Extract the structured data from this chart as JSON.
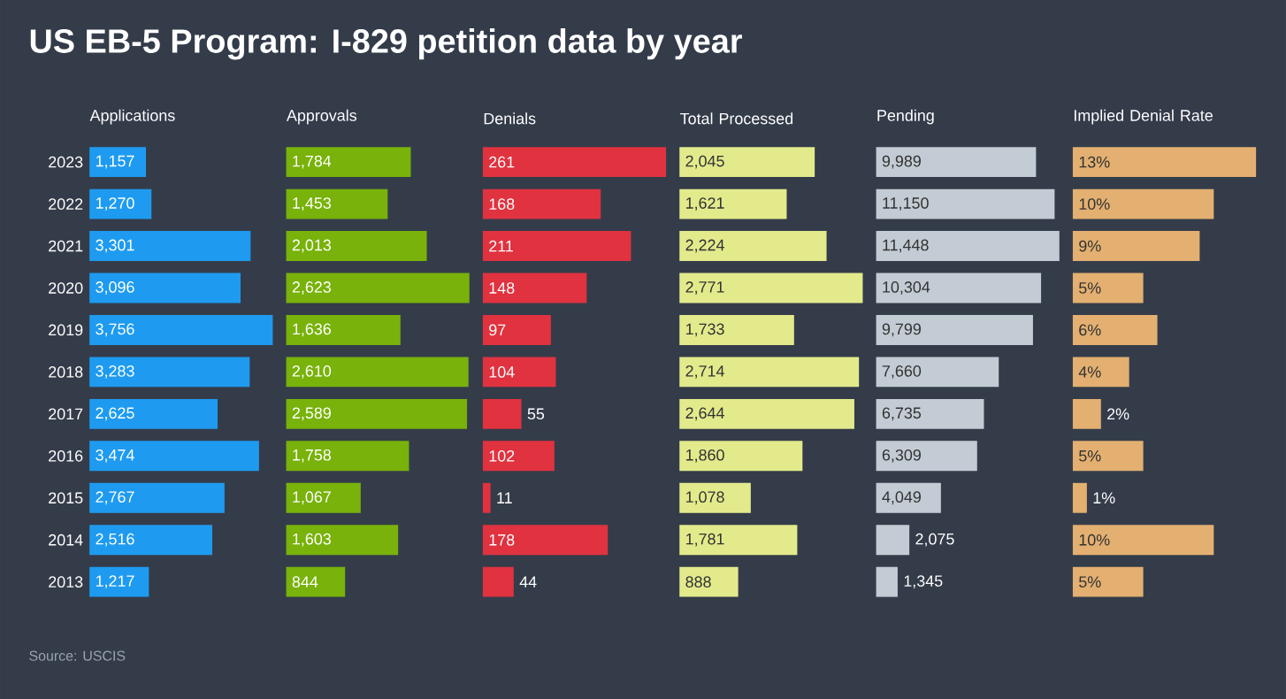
{
  "chart_data": [
    {
      "type": "other",
      "title": "US EB-5 Program: I-829 petition data by year",
      "annotations": [
        "Source: USCIS"
      ]
    },
    {
      "type": "bar",
      "orientation": "horizontal",
      "title": "Applications",
      "tick_labels": "y",
      "color": "#1e9bf0",
      "categories": [
        "2023",
        "2022",
        "2021",
        "2020",
        "2019",
        "2018",
        "2017",
        "2016",
        "2015",
        "2014",
        "2013"
      ],
      "values": [
        1157,
        1270,
        3301,
        3096,
        3756,
        3283,
        2625,
        3474,
        2767,
        2516,
        1217
      ],
      "value_labels": [
        "1,157",
        "1,270",
        "3,301",
        "3,096",
        "3,756",
        "3,283",
        "2,625",
        "3,474",
        "2,767",
        "2,516",
        "1,217"
      ]
    },
    {
      "type": "bar",
      "orientation": "horizontal",
      "title": "Approvals",
      "tick_labels": false,
      "color": "#78b20a",
      "categories": [
        "2023",
        "2022",
        "2021",
        "2020",
        "2019",
        "2018",
        "2017",
        "2016",
        "2015",
        "2014",
        "2013"
      ],
      "values": [
        1784,
        1453,
        2013,
        2623,
        1636,
        2610,
        2589,
        1758,
        1067,
        1603,
        844
      ],
      "value_labels": [
        "1,784",
        "1,453",
        "2,013",
        "2,623",
        "1,636",
        "2,610",
        "2,589",
        "1,758",
        "1,067",
        "1,603",
        "844"
      ]
    },
    {
      "type": "bar",
      "orientation": "horizontal",
      "title": "Denials",
      "tick_labels": false,
      "color": "#e0323f",
      "categories": [
        "2023",
        "2022",
        "2021",
        "2020",
        "2019",
        "2018",
        "2017",
        "2016",
        "2015",
        "2014",
        "2013"
      ],
      "values": [
        261,
        168,
        211,
        148,
        97,
        104,
        55,
        102,
        11,
        178,
        44
      ],
      "value_labels": [
        "261",
        "168",
        "211",
        "148",
        "97",
        "104",
        "55",
        "102",
        "11",
        "178",
        "44"
      ]
    },
    {
      "type": "bar",
      "orientation": "horizontal",
      "title": "Total Processed",
      "tick_labels": false,
      "color": "#e3ea8c",
      "categories": [
        "2023",
        "2022",
        "2021",
        "2020",
        "2019",
        "2018",
        "2017",
        "2016",
        "2015",
        "2014",
        "2013"
      ],
      "values": [
        2045,
        1621,
        2224,
        2771,
        1733,
        2714,
        2644,
        1860,
        1078,
        1781,
        888
      ],
      "value_labels": [
        "2,045",
        "1,621",
        "2,224",
        "2,771",
        "1,733",
        "2,714",
        "2,644",
        "1,860",
        "1,078",
        "1,781",
        "888"
      ]
    },
    {
      "type": "bar",
      "orientation": "horizontal",
      "title": "Pending",
      "tick_labels": false,
      "color": "#c3ccd4",
      "categories": [
        "2023",
        "2022",
        "2021",
        "2020",
        "2019",
        "2018",
        "2017",
        "2016",
        "2015",
        "2014",
        "2013"
      ],
      "values": [
        9989,
        11150,
        11448,
        10304,
        9799,
        7660,
        6735,
        6309,
        4049,
        2075,
        1345
      ],
      "value_labels": [
        "9,989",
        "11,150",
        "11,448",
        "10,304",
        "9,799",
        "7,660",
        "6,735",
        "6,309",
        "4,049",
        "2,075",
        "1,345"
      ]
    },
    {
      "type": "bar",
      "orientation": "horizontal",
      "title": "Implied Denial Rate",
      "tick_labels": false,
      "color": "#e3b071",
      "categories": [
        "2023",
        "2022",
        "2021",
        "2020",
        "2019",
        "2018",
        "2017",
        "2016",
        "2015",
        "2014",
        "2013"
      ],
      "values": [
        13,
        10,
        9,
        5,
        6,
        4,
        2,
        5,
        1,
        10,
        5
      ],
      "value_labels": [
        "13%",
        "10%",
        "9%",
        "5%",
        "6%",
        "4%",
        "2%",
        "5%",
        "1%",
        "10%",
        "5%"
      ]
    }
  ]
}
